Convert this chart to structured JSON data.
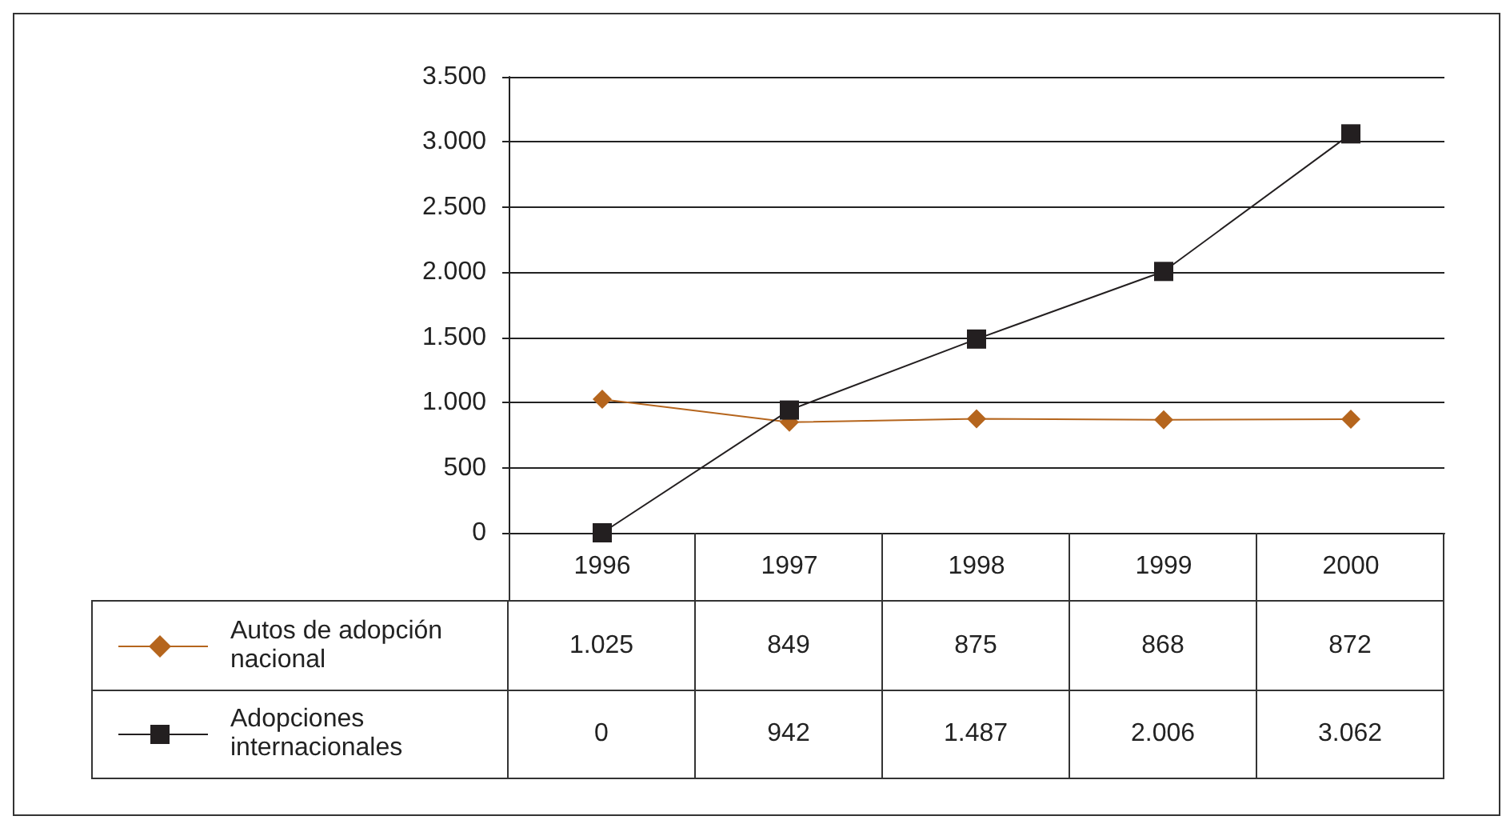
{
  "chart_data": {
    "type": "line",
    "categories": [
      "1996",
      "1997",
      "1998",
      "1999",
      "2000"
    ],
    "series": [
      {
        "name": "Autos de adopción nacional",
        "color": "#b5651d",
        "marker": "diamond",
        "values": [
          1025,
          849,
          875,
          868,
          872
        ],
        "value_labels": [
          "1.025",
          "849",
          "875",
          "868",
          "872"
        ]
      },
      {
        "name": "Adopciones internacionales",
        "color": "#231f20",
        "marker": "square",
        "values": [
          0,
          942,
          1487,
          2006,
          3062
        ],
        "value_labels": [
          "0",
          "942",
          "1.487",
          "2.006",
          "3.062"
        ]
      }
    ],
    "ylim": [
      0,
      3500
    ],
    "yticks": [
      0,
      500,
      {
        "value": 1000,
        "label": "1.000"
      },
      {
        "value": 1500,
        "label": "1.500"
      },
      {
        "value": 2000,
        "label": "2.000"
      },
      {
        "value": 2500,
        "label": "2.500"
      },
      {
        "value": 3000,
        "label": "3.000"
      },
      {
        "value": 3500,
        "label": "3.500"
      }
    ],
    "grid": "y",
    "legend": "bottom",
    "line_style": "solid"
  }
}
